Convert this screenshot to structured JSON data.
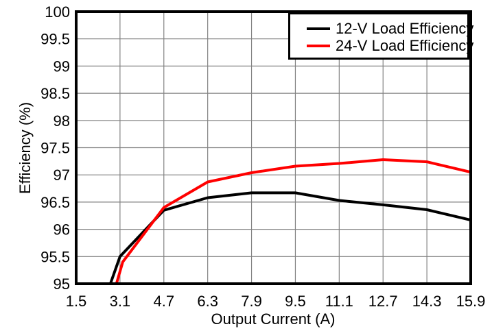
{
  "chart_data": {
    "type": "line",
    "title": "",
    "xlabel": "Output Current (A)",
    "ylabel": "Efficiency (%)",
    "xlim": [
      1.5,
      15.9
    ],
    "ylim": [
      95,
      100
    ],
    "x_ticks": [
      1.5,
      3.1,
      4.7,
      6.3,
      7.9,
      9.5,
      11.1,
      12.7,
      14.3,
      15.9
    ],
    "y_ticks": [
      95,
      95.5,
      96,
      96.5,
      97,
      97.5,
      98,
      98.5,
      99,
      99.5,
      100
    ],
    "grid": true,
    "legend_position": "top-right",
    "colors": {
      "axis": "#000000",
      "grid": "#828282",
      "background": "#ffffff"
    },
    "series": [
      {
        "name": "12-V Load Efficiency",
        "color": "#000000",
        "x": [
          2.75,
          3.1,
          4.7,
          6.3,
          7.9,
          9.5,
          11.1,
          12.7,
          14.3,
          15.9
        ],
        "y": [
          95.0,
          95.5,
          96.35,
          96.58,
          96.67,
          96.67,
          96.53,
          96.45,
          96.36,
          96.17
        ]
      },
      {
        "name": "24-V Load Efficiency",
        "color": "#ff0000",
        "x": [
          2.97,
          3.2,
          4.7,
          6.3,
          7.9,
          9.5,
          11.1,
          12.7,
          14.3,
          15.9
        ],
        "y": [
          95.0,
          95.4,
          96.4,
          96.87,
          97.04,
          97.16,
          97.21,
          97.28,
          97.24,
          97.05
        ]
      }
    ]
  }
}
